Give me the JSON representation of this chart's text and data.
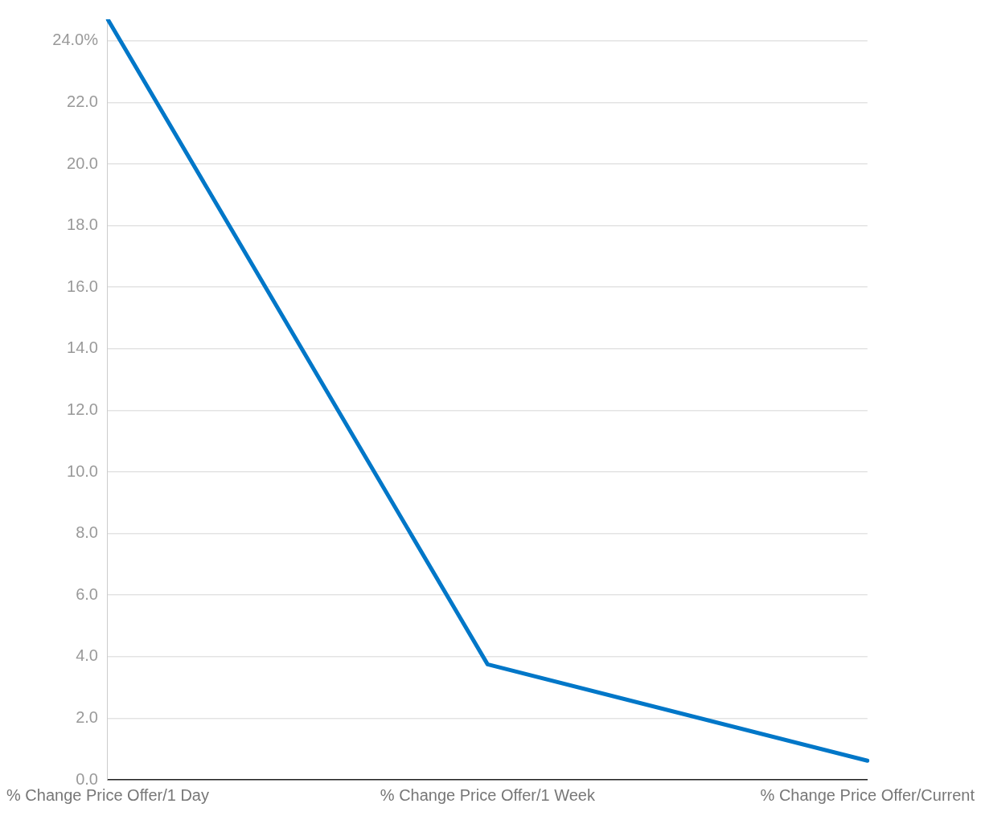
{
  "chart_data": {
    "type": "line",
    "categories": [
      "% Change Price Offer/1 Day",
      "% Change Price Offer/1 Week",
      "% Change Price Offer/Current"
    ],
    "series": [
      {
        "color": "#0077c8",
        "values": [
          24.7,
          3.75,
          0.62
        ]
      }
    ],
    "ylim": [
      0,
      24.7
    ],
    "yticks": [
      {
        "value": 0,
        "label": "0.0"
      },
      {
        "value": 2,
        "label": "2.0"
      },
      {
        "value": 4,
        "label": "4.0"
      },
      {
        "value": 6,
        "label": "6.0"
      },
      {
        "value": 8,
        "label": "8.0"
      },
      {
        "value": 10,
        "label": "10.0"
      },
      {
        "value": 12,
        "label": "12.0"
      },
      {
        "value": 14,
        "label": "14.0"
      },
      {
        "value": 16,
        "label": "16.0"
      },
      {
        "value": 18,
        "label": "18.0"
      },
      {
        "value": 20,
        "label": "20.0"
      },
      {
        "value": 22,
        "label": "22.0"
      },
      {
        "value": 24,
        "label": "24.0%"
      }
    ],
    "grid": "y",
    "marker": "none",
    "legend": false
  }
}
